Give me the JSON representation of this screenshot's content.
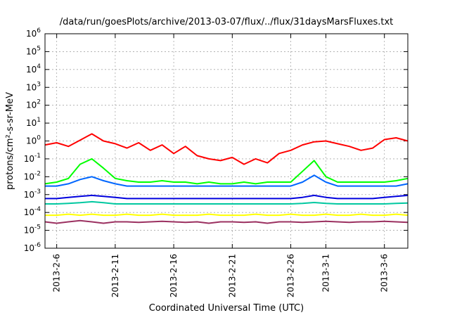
{
  "chart_data": {
    "type": "line",
    "title": "/data/run/goesPlots/archive/2013-03-07/flux/../flux/31daysMarsFluxes.txt",
    "xlabel": "Coordinated Universal Time (UTC)",
    "ylabel": "protons/cm²-s-sr-MeV",
    "yscale": "log",
    "grid": true,
    "x_range": [
      "2013-02-05",
      "2013-03-08"
    ],
    "x_ticks": [
      "2013-2-6",
      "2013-2-11",
      "2013-2-16",
      "2013-2-21",
      "2013-2-26",
      "2013-3-1",
      "2013-3-6"
    ],
    "y_ticks": [
      {
        "mant": "10",
        "exp": "-6"
      },
      {
        "mant": "10",
        "exp": "-5"
      },
      {
        "mant": "10",
        "exp": "-4"
      },
      {
        "mant": "10",
        "exp": "-3"
      },
      {
        "mant": "10",
        "exp": "-2"
      },
      {
        "mant": "10",
        "exp": "-1"
      },
      {
        "mant": "10",
        "exp": "0"
      },
      {
        "mant": "10",
        "exp": "1"
      },
      {
        "mant": "10",
        "exp": "2"
      },
      {
        "mant": "10",
        "exp": "3"
      },
      {
        "mant": "10",
        "exp": "4"
      },
      {
        "mant": "10",
        "exp": "5"
      },
      {
        "mant": "10",
        "exp": "6"
      }
    ],
    "ylim": [
      1e-06,
      1000000.0
    ],
    "series": [
      {
        "color": "#ff0000",
        "x": [
          "2013-02-05",
          "2013-02-06",
          "2013-02-07",
          "2013-02-08",
          "2013-02-09",
          "2013-02-10",
          "2013-02-11",
          "2013-02-12",
          "2013-02-13",
          "2013-02-14",
          "2013-02-15",
          "2013-02-16",
          "2013-02-17",
          "2013-02-18",
          "2013-02-19",
          "2013-02-20",
          "2013-02-21",
          "2013-02-22",
          "2013-02-23",
          "2013-02-24",
          "2013-02-25",
          "2013-02-26",
          "2013-02-27",
          "2013-02-28",
          "2013-03-01",
          "2013-03-02",
          "2013-03-03",
          "2013-03-04",
          "2013-03-05",
          "2013-03-06",
          "2013-03-07",
          "2013-03-08"
        ],
        "y": [
          0.6,
          0.8,
          0.5,
          1.1,
          2.5,
          1.0,
          0.7,
          0.4,
          0.8,
          0.3,
          0.6,
          0.2,
          0.5,
          0.15,
          0.1,
          0.08,
          0.12,
          0.05,
          0.1,
          0.06,
          0.2,
          0.3,
          0.6,
          0.9,
          1.0,
          0.7,
          0.5,
          0.3,
          0.4,
          1.2,
          1.5,
          1.0
        ]
      },
      {
        "color": "#00ff00",
        "x": [
          "2013-02-05",
          "2013-02-06",
          "2013-02-07",
          "2013-02-08",
          "2013-02-09",
          "2013-02-10",
          "2013-02-11",
          "2013-02-12",
          "2013-02-13",
          "2013-02-14",
          "2013-02-15",
          "2013-02-16",
          "2013-02-17",
          "2013-02-18",
          "2013-02-19",
          "2013-02-20",
          "2013-02-21",
          "2013-02-22",
          "2013-02-23",
          "2013-02-24",
          "2013-02-25",
          "2013-02-26",
          "2013-02-27",
          "2013-02-28",
          "2013-03-01",
          "2013-03-02",
          "2013-03-03",
          "2013-03-04",
          "2013-03-05",
          "2013-03-06",
          "2013-03-07",
          "2013-03-08"
        ],
        "y": [
          0.004,
          0.005,
          0.008,
          0.05,
          0.1,
          0.03,
          0.008,
          0.006,
          0.005,
          0.005,
          0.006,
          0.005,
          0.005,
          0.004,
          0.005,
          0.004,
          0.004,
          0.005,
          0.004,
          0.005,
          0.005,
          0.005,
          0.02,
          0.08,
          0.01,
          0.005,
          0.005,
          0.005,
          0.005,
          0.005,
          0.006,
          0.008
        ]
      },
      {
        "color": "#0066ff",
        "x": [
          "2013-02-05",
          "2013-02-06",
          "2013-02-07",
          "2013-02-08",
          "2013-02-09",
          "2013-02-10",
          "2013-02-11",
          "2013-02-12",
          "2013-02-13",
          "2013-02-14",
          "2013-02-15",
          "2013-02-16",
          "2013-02-17",
          "2013-02-18",
          "2013-02-19",
          "2013-02-20",
          "2013-02-21",
          "2013-02-22",
          "2013-02-23",
          "2013-02-24",
          "2013-02-25",
          "2013-02-26",
          "2013-02-27",
          "2013-02-28",
          "2013-03-01",
          "2013-03-02",
          "2013-03-03",
          "2013-03-04",
          "2013-03-05",
          "2013-03-06",
          "2013-03-07",
          "2013-03-08"
        ],
        "y": [
          0.003,
          0.003,
          0.004,
          0.007,
          0.01,
          0.006,
          0.004,
          0.003,
          0.003,
          0.003,
          0.003,
          0.003,
          0.003,
          0.003,
          0.003,
          0.003,
          0.003,
          0.003,
          0.003,
          0.003,
          0.003,
          0.003,
          0.005,
          0.012,
          0.005,
          0.003,
          0.003,
          0.003,
          0.003,
          0.003,
          0.003,
          0.004
        ]
      },
      {
        "color": "#0000dd",
        "x": [
          "2013-02-05",
          "2013-02-06",
          "2013-02-07",
          "2013-02-08",
          "2013-02-09",
          "2013-02-10",
          "2013-02-11",
          "2013-02-12",
          "2013-02-13",
          "2013-02-14",
          "2013-02-15",
          "2013-02-16",
          "2013-02-17",
          "2013-02-18",
          "2013-02-19",
          "2013-02-20",
          "2013-02-21",
          "2013-02-22",
          "2013-02-23",
          "2013-02-24",
          "2013-02-25",
          "2013-02-26",
          "2013-02-27",
          "2013-02-28",
          "2013-03-01",
          "2013-03-02",
          "2013-03-03",
          "2013-03-04",
          "2013-03-05",
          "2013-03-06",
          "2013-03-07",
          "2013-03-08"
        ],
        "y": [
          0.0006,
          0.0006,
          0.0007,
          0.0008,
          0.0009,
          0.0008,
          0.0007,
          0.0006,
          0.0006,
          0.0006,
          0.0006,
          0.0006,
          0.0006,
          0.0006,
          0.0006,
          0.0006,
          0.0006,
          0.0006,
          0.0006,
          0.0006,
          0.0006,
          0.0006,
          0.0007,
          0.0009,
          0.0007,
          0.0006,
          0.0006,
          0.0006,
          0.0006,
          0.0007,
          0.0008,
          0.0009
        ]
      },
      {
        "color": "#00c8a0",
        "x": [
          "2013-02-05",
          "2013-02-06",
          "2013-02-07",
          "2013-02-08",
          "2013-02-09",
          "2013-02-10",
          "2013-02-11",
          "2013-02-12",
          "2013-02-13",
          "2013-02-14",
          "2013-02-15",
          "2013-02-16",
          "2013-02-17",
          "2013-02-18",
          "2013-02-19",
          "2013-02-20",
          "2013-02-21",
          "2013-02-22",
          "2013-02-23",
          "2013-02-24",
          "2013-02-25",
          "2013-02-26",
          "2013-02-27",
          "2013-02-28",
          "2013-03-01",
          "2013-03-02",
          "2013-03-03",
          "2013-03-04",
          "2013-03-05",
          "2013-03-06",
          "2013-03-07",
          "2013-03-08"
        ],
        "y": [
          0.0003,
          0.0003,
          0.00032,
          0.00035,
          0.0004,
          0.00035,
          0.0003,
          0.0003,
          0.0003,
          0.0003,
          0.0003,
          0.0003,
          0.0003,
          0.0003,
          0.0003,
          0.0003,
          0.0003,
          0.0003,
          0.0003,
          0.0003,
          0.0003,
          0.0003,
          0.00032,
          0.00036,
          0.00032,
          0.0003,
          0.0003,
          0.0003,
          0.0003,
          0.0003,
          0.00032,
          0.00034
        ]
      },
      {
        "color": "#ffff00",
        "x": [
          "2013-02-05",
          "2013-02-06",
          "2013-02-07",
          "2013-02-08",
          "2013-02-09",
          "2013-02-10",
          "2013-02-11",
          "2013-02-12",
          "2013-02-13",
          "2013-02-14",
          "2013-02-15",
          "2013-02-16",
          "2013-02-17",
          "2013-02-18",
          "2013-02-19",
          "2013-02-20",
          "2013-02-21",
          "2013-02-22",
          "2013-02-23",
          "2013-02-24",
          "2013-02-25",
          "2013-02-26",
          "2013-02-27",
          "2013-02-28",
          "2013-03-01",
          "2013-03-02",
          "2013-03-03",
          "2013-03-04",
          "2013-03-05",
          "2013-03-06",
          "2013-03-07",
          "2013-03-08"
        ],
        "y": [
          7e-05,
          7e-05,
          8e-05,
          7e-05,
          8e-05,
          7e-05,
          7e-05,
          8e-05,
          7e-05,
          7e-05,
          8e-05,
          7e-05,
          7e-05,
          7e-05,
          8e-05,
          7e-05,
          7e-05,
          7e-05,
          8e-05,
          7e-05,
          7e-05,
          8e-05,
          7e-05,
          7e-05,
          8e-05,
          7e-05,
          7e-05,
          8e-05,
          7e-05,
          7e-05,
          8e-05,
          7e-05
        ]
      },
      {
        "color": "#9b3060",
        "x": [
          "2013-02-05",
          "2013-02-06",
          "2013-02-07",
          "2013-02-08",
          "2013-02-09",
          "2013-02-10",
          "2013-02-11",
          "2013-02-12",
          "2013-02-13",
          "2013-02-14",
          "2013-02-15",
          "2013-02-16",
          "2013-02-17",
          "2013-02-18",
          "2013-02-19",
          "2013-02-20",
          "2013-02-21",
          "2013-02-22",
          "2013-02-23",
          "2013-02-24",
          "2013-02-25",
          "2013-02-26",
          "2013-02-27",
          "2013-02-28",
          "2013-03-01",
          "2013-03-02",
          "2013-03-03",
          "2013-03-04",
          "2013-03-05",
          "2013-03-06",
          "2013-03-07",
          "2013-03-08"
        ],
        "y": [
          3e-05,
          2.5e-05,
          3e-05,
          3.5e-05,
          3e-05,
          2.5e-05,
          3e-05,
          3e-05,
          2.8e-05,
          3e-05,
          3.2e-05,
          3e-05,
          2.8e-05,
          3e-05,
          2.5e-05,
          3e-05,
          3e-05,
          2.8e-05,
          3e-05,
          2.5e-05,
          3e-05,
          3e-05,
          2.8e-05,
          3e-05,
          3.2e-05,
          3e-05,
          2.8e-05,
          3e-05,
          3e-05,
          3.2e-05,
          3e-05,
          2.8e-05
        ]
      }
    ]
  }
}
